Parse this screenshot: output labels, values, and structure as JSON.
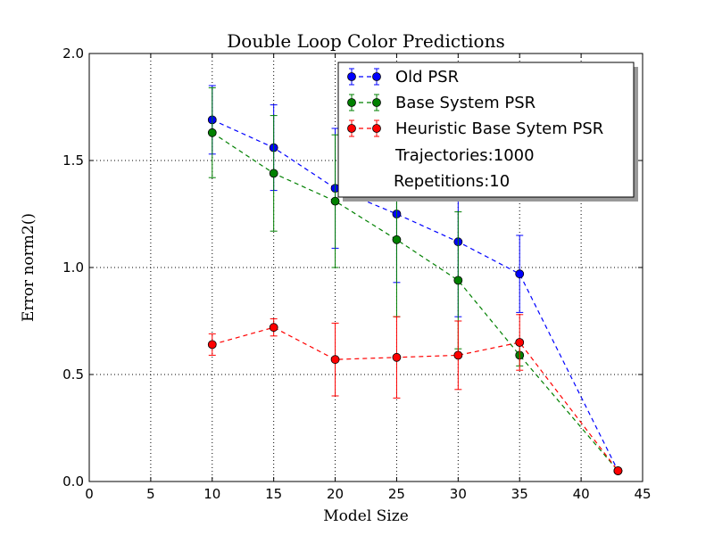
{
  "chart_data": {
    "type": "line",
    "title": "Double Loop Color Predictions",
    "xlabel": "Model Size",
    "ylabel": "Error norm2()",
    "xlim": [
      0,
      45
    ],
    "ylim": [
      0,
      2.0
    ],
    "xticks": [
      0,
      5,
      10,
      15,
      20,
      25,
      30,
      35,
      40,
      45
    ],
    "yticks": [
      0.0,
      0.5,
      1.0,
      1.5,
      2.0
    ],
    "xtick_labels": [
      "0",
      "5",
      "10",
      "15",
      "20",
      "25",
      "30",
      "35",
      "40",
      "45"
    ],
    "ytick_labels": [
      "0.0",
      "0.5",
      "1.0",
      "1.5",
      "2.0"
    ],
    "grid": true,
    "legend_position": "top-right",
    "series": [
      {
        "name": "Old PSR",
        "color": "#0000ff",
        "x": [
          10,
          15,
          20,
          25,
          30,
          35,
          43
        ],
        "y": [
          1.69,
          1.56,
          1.37,
          1.25,
          1.12,
          0.97,
          0.05
        ],
        "err": [
          0.16,
          0.2,
          0.28,
          0.32,
          0.35,
          0.18,
          0.01
        ]
      },
      {
        "name": "Base System PSR",
        "color": "#008000",
        "x": [
          10,
          15,
          20,
          25,
          30,
          35,
          43
        ],
        "y": [
          1.63,
          1.44,
          1.31,
          1.13,
          0.94,
          0.59,
          0.05
        ],
        "err": [
          0.21,
          0.27,
          0.31,
          0.36,
          0.32,
          0.05,
          0.01
        ]
      },
      {
        "name": "Heuristic Base Sytem PSR",
        "color": "#ff0000",
        "x": [
          10,
          15,
          20,
          25,
          30,
          35,
          43
        ],
        "y": [
          0.64,
          0.72,
          0.57,
          0.58,
          0.59,
          0.65,
          0.05
        ],
        "err": [
          0.05,
          0.04,
          0.17,
          0.19,
          0.16,
          0.13,
          0.01
        ]
      }
    ],
    "legend_extra": [
      "Trajectories:1000",
      "Repetitions:10"
    ]
  }
}
